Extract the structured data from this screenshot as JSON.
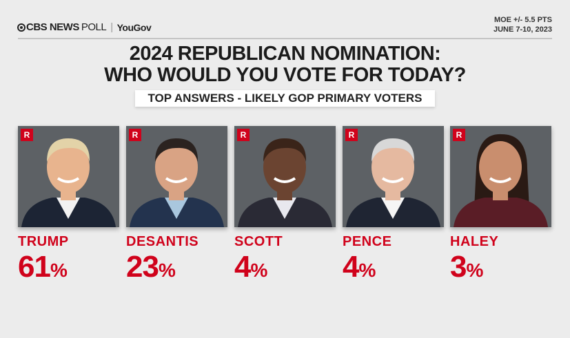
{
  "header": {
    "logo_cbs": "CBS NEWS",
    "logo_poll": "POLL",
    "logo_partner": "YouGov",
    "moe": "MOE +/- 5.5 PTS",
    "dates": "JUNE 7-10, 2023"
  },
  "title_line1": "2024 REPUBLICAN NOMINATION:",
  "title_line2": "WHO WOULD YOU VOTE FOR TODAY?",
  "subtitle": "TOP ANSWERS - LIKELY GOP PRIMARY VOTERS",
  "colors": {
    "accent": "#d0021b",
    "background": "#ececec"
  },
  "percent_sign": "%",
  "chart_data": {
    "type": "table",
    "title": "2024 REPUBLICAN NOMINATION: WHO WOULD YOU VOTE FOR TODAY?",
    "subtitle": "TOP ANSWERS - LIKELY GOP PRIMARY VOTERS",
    "categories": [
      "TRUMP",
      "DESANTIS",
      "SCOTT",
      "PENCE",
      "HALEY"
    ],
    "values": [
      61,
      23,
      4,
      4,
      3
    ],
    "party_badges": [
      "R",
      "R",
      "R",
      "R",
      "R"
    ],
    "unit": "%"
  }
}
